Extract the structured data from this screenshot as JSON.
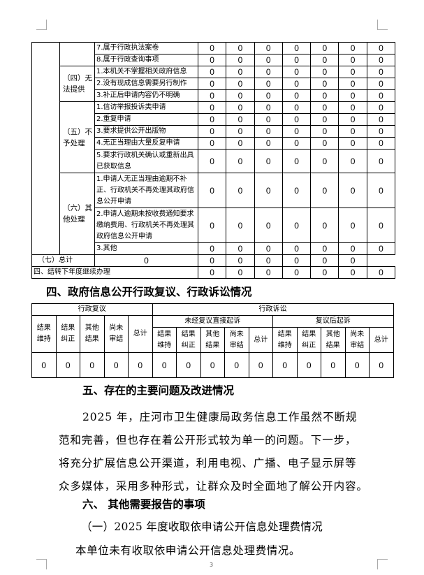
{
  "table1": {
    "rows": [
      {
        "group": "",
        "item": "7.属于行政执法案卷",
        "values": [
          "0",
          "0",
          "0",
          "0",
          "0",
          "0",
          "0"
        ]
      },
      {
        "group": "",
        "item": "8.属于行政查询事项",
        "values": [
          "0",
          "0",
          "0",
          "0",
          "0",
          "0",
          "0"
        ]
      },
      {
        "group": "（四）无法提供",
        "item": "1.本机关不掌握相关政府信息",
        "values": [
          "0",
          "0",
          "0",
          "0",
          "0",
          "0",
          "0"
        ]
      },
      {
        "group": "",
        "item": "2.没有现成信息需要另行制作",
        "values": [
          "0",
          "0",
          "0",
          "0",
          "0",
          "0",
          "0"
        ]
      },
      {
        "group": "",
        "item": "3.补正后申请内容仍不明确",
        "values": [
          "0",
          "0",
          "0",
          "0",
          "0",
          "0",
          "0"
        ]
      },
      {
        "group": "（五）不予处理",
        "item": "1.信访举报投诉类申请",
        "values": [
          "0",
          "0",
          "0",
          "0",
          "0",
          "0",
          "0"
        ]
      },
      {
        "group": "",
        "item": "2.重复申请",
        "values": [
          "0",
          "0",
          "0",
          "0",
          "0",
          "0",
          "0"
        ]
      },
      {
        "group": "",
        "item": "3.要求提供公开出版物",
        "values": [
          "0",
          "0",
          "0",
          "0",
          "0",
          "0",
          "0"
        ]
      },
      {
        "group": "",
        "item": "4.无正当理由大量反复申请",
        "values": [
          "0",
          "0",
          "0",
          "0",
          "0",
          "0",
          "0"
        ]
      },
      {
        "group": "",
        "item": "5.要求行政机关确认或重新出具已获取信息",
        "values": [
          "0",
          "0",
          "0",
          "0",
          "0",
          "0",
          "0"
        ]
      },
      {
        "group": "（六）其他处理",
        "item": "1.申请人无正当理由逾期不补正、行政机关不再处理其政府信息公开申请",
        "values": [
          "0",
          "0",
          "0",
          "0",
          "0",
          "0",
          "0"
        ]
      },
      {
        "group": "",
        "item": "2.申请人逾期未按收费通知要求缴纳费用、行政机关不再处理其政府信息公开申请",
        "values": [
          "0",
          "0",
          "0",
          "0",
          "0",
          "0",
          "0"
        ]
      },
      {
        "group": "",
        "item": "3.其他",
        "values": [
          "0",
          "0",
          "0",
          "0",
          "0",
          "0",
          "0"
        ]
      },
      {
        "group": "",
        "item": "（七）总计",
        "values": [
          "0",
          "0",
          "0",
          "0",
          "0",
          "0",
          "0"
        ]
      },
      {
        "group": "",
        "item": "四、结转下年度继续办理",
        "values": [
          "0",
          "0",
          "0",
          "0",
          "0",
          "0",
          "0"
        ]
      }
    ]
  },
  "heading4": "四、政府信息公开行政复议、行政诉讼情况",
  "table2": {
    "review": "行政复议",
    "litigation": "行政诉讼",
    "direct": "未经复议直接起诉",
    "after": "复议后起诉",
    "cols": [
      "结果维持",
      "结果纠正",
      "其他结果",
      "尚未审结",
      "总计"
    ],
    "values": [
      "0",
      "0",
      "0",
      "0",
      "0",
      "0",
      "0",
      "0",
      "0",
      "0",
      "0",
      "0",
      "0",
      "0",
      "0"
    ]
  },
  "heading5": "五、存在的主要问题及改进情况",
  "para5": [
    "2025 年，庄河市卫生健康局政务信息工作虽然不断规",
    "范和完善，但也存在着公开形式较为单一的问题。下一步，",
    "将充分扩展信息公开渠道，利用电视、广播、电子显示屏等",
    "众多媒体，采用多种形式，让群众及时全面地了解公开内容。"
  ],
  "heading6": "六、 其他需要报告的事项",
  "sub6": "（一）2025 年度收取依申请公开信息处理费情况",
  "para6": "本单位未有收取依申请公开信息处理费情况。",
  "page_number": "3"
}
